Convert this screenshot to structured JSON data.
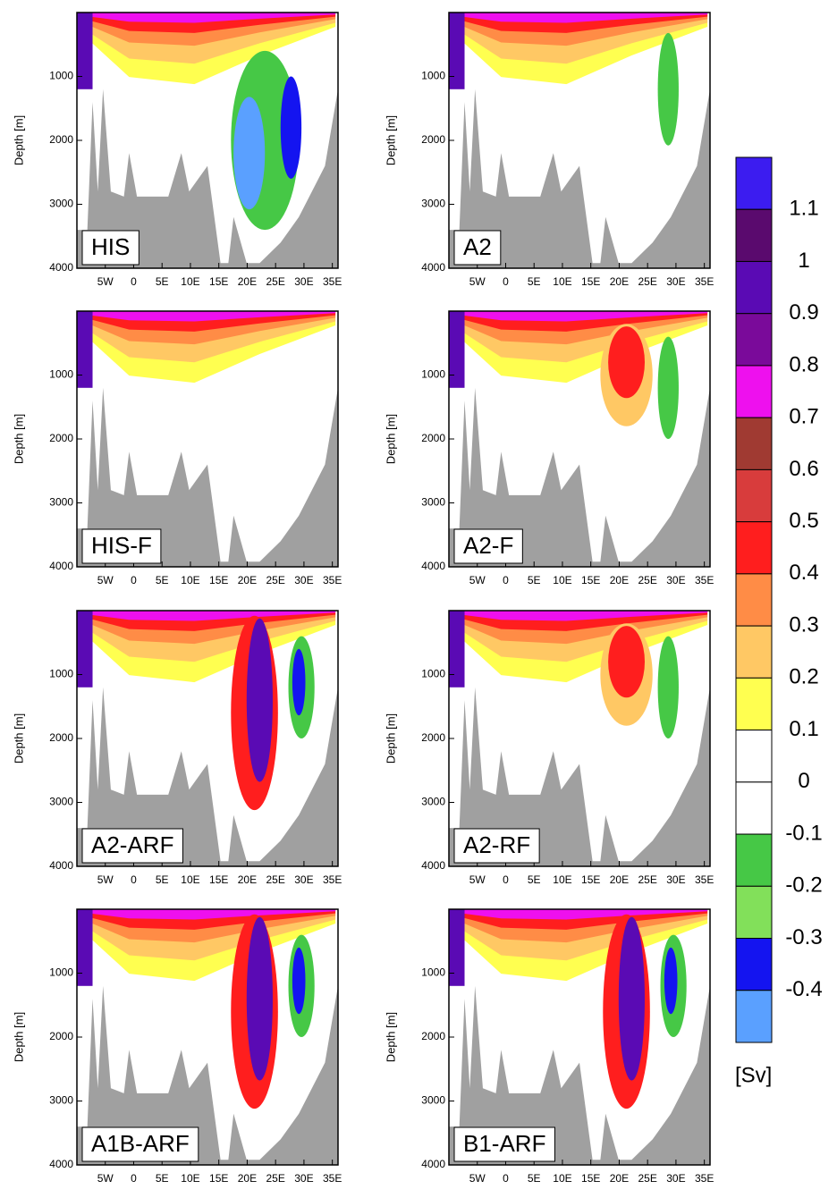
{
  "chart_data": [
    {
      "type": "contour",
      "label": "HIS",
      "ylabel": "Depth [m]",
      "xlim": [
        -10,
        36
      ],
      "ylim": [
        0,
        4000
      ],
      "xticks": [
        {
          "value": -5,
          "label": "5W"
        },
        0,
        {
          "value": 5,
          "label": "5E"
        },
        {
          "value": 10,
          "label": "10E"
        },
        {
          "value": 15,
          "label": "15E"
        },
        {
          "value": 20,
          "label": "20E"
        },
        {
          "value": 25,
          "label": "25E"
        },
        {
          "value": 30,
          "label": "30E"
        },
        {
          "value": 35,
          "label": "35E"
        }
      ],
      "yticks": [
        1000,
        2000,
        3000,
        4000
      ]
    },
    {
      "type": "contour",
      "label": "A2",
      "ylabel": "Depth [m]",
      "xlim": [
        -10,
        36
      ],
      "ylim": [
        0,
        4000
      ],
      "xticks": [
        {
          "value": -5,
          "label": "5W"
        },
        0,
        {
          "value": 5,
          "label": "5E"
        },
        {
          "value": 10,
          "label": "10E"
        },
        {
          "value": 15,
          "label": "15E"
        },
        {
          "value": 20,
          "label": "20E"
        },
        {
          "value": 25,
          "label": "25E"
        },
        {
          "value": 30,
          "label": "30E"
        },
        {
          "value": 35,
          "label": "35E"
        }
      ],
      "yticks": [
        1000,
        2000,
        3000,
        4000
      ]
    },
    {
      "type": "contour",
      "label": "HIS-F",
      "ylabel": "Depth [m]",
      "xlim": [
        -10,
        36
      ],
      "ylim": [
        0,
        4000
      ],
      "xticks": [
        {
          "value": -5,
          "label": "5W"
        },
        0,
        {
          "value": 5,
          "label": "5E"
        },
        {
          "value": 10,
          "label": "10E"
        },
        {
          "value": 15,
          "label": "15E"
        },
        {
          "value": 20,
          "label": "20E"
        },
        {
          "value": 25,
          "label": "25E"
        },
        {
          "value": 30,
          "label": "30E"
        },
        {
          "value": 35,
          "label": "35E"
        }
      ],
      "yticks": [
        1000,
        2000,
        3000,
        4000
      ]
    },
    {
      "type": "contour",
      "label": "A2-F",
      "ylabel": "Depth [m]",
      "xlim": [
        -10,
        36
      ],
      "ylim": [
        0,
        4000
      ],
      "xticks": [
        {
          "value": -5,
          "label": "5W"
        },
        0,
        {
          "value": 5,
          "label": "5E"
        },
        {
          "value": 10,
          "label": "10E"
        },
        {
          "value": 15,
          "label": "15E"
        },
        {
          "value": 20,
          "label": "20E"
        },
        {
          "value": 25,
          "label": "25E"
        },
        {
          "value": 30,
          "label": "30E"
        },
        {
          "value": 35,
          "label": "35E"
        }
      ],
      "yticks": [
        1000,
        2000,
        3000,
        4000
      ]
    },
    {
      "type": "contour",
      "label": "A2-ARF",
      "ylabel": "Depth [m]",
      "xlim": [
        -10,
        36
      ],
      "ylim": [
        0,
        4000
      ],
      "xticks": [
        {
          "value": -5,
          "label": "5W"
        },
        0,
        {
          "value": 5,
          "label": "5E"
        },
        {
          "value": 10,
          "label": "10E"
        },
        {
          "value": 15,
          "label": "15E"
        },
        {
          "value": 20,
          "label": "20E"
        },
        {
          "value": 25,
          "label": "25E"
        },
        {
          "value": 30,
          "label": "30E"
        },
        {
          "value": 35,
          "label": "35E"
        }
      ],
      "yticks": [
        1000,
        2000,
        3000,
        4000
      ]
    },
    {
      "type": "contour",
      "label": "A2-RF",
      "ylabel": "Depth [m]",
      "xlim": [
        -10,
        36
      ],
      "ylim": [
        0,
        4000
      ],
      "xticks": [
        {
          "value": -5,
          "label": "5W"
        },
        0,
        {
          "value": 5,
          "label": "5E"
        },
        {
          "value": 10,
          "label": "10E"
        },
        {
          "value": 15,
          "label": "15E"
        },
        {
          "value": 20,
          "label": "20E"
        },
        {
          "value": 25,
          "label": "25E"
        },
        {
          "value": 30,
          "label": "30E"
        },
        {
          "value": 35,
          "label": "35E"
        }
      ],
      "yticks": [
        1000,
        2000,
        3000,
        4000
      ]
    },
    {
      "type": "contour",
      "label": "A1B-ARF",
      "ylabel": "Depth [m]",
      "xlim": [
        -10,
        36
      ],
      "ylim": [
        0,
        4000
      ],
      "xticks": [
        {
          "value": -5,
          "label": "5W"
        },
        0,
        {
          "value": 5,
          "label": "5E"
        },
        {
          "value": 10,
          "label": "10E"
        },
        {
          "value": 15,
          "label": "15E"
        },
        {
          "value": 20,
          "label": "20E"
        },
        {
          "value": 25,
          "label": "25E"
        },
        {
          "value": 30,
          "label": "30E"
        },
        {
          "value": 35,
          "label": "35E"
        }
      ],
      "yticks": [
        1000,
        2000,
        3000,
        4000
      ]
    },
    {
      "type": "contour",
      "label": "B1-ARF",
      "ylabel": "Depth [m]",
      "xlim": [
        -10,
        36
      ],
      "ylim": [
        0,
        4000
      ],
      "xticks": [
        {
          "value": -5,
          "label": "5W"
        },
        0,
        {
          "value": 5,
          "label": "5E"
        },
        {
          "value": 10,
          "label": "10E"
        },
        {
          "value": 15,
          "label": "15E"
        },
        {
          "value": 20,
          "label": "20E"
        },
        {
          "value": 25,
          "label": "25E"
        },
        {
          "value": 30,
          "label": "30E"
        },
        {
          "value": 35,
          "label": "35E"
        }
      ],
      "yticks": [
        1000,
        2000,
        3000,
        4000
      ]
    }
  ],
  "colorbar": {
    "levels": [
      1.1,
      1,
      0.9,
      0.8,
      0.7,
      0.6,
      0.5,
      0.4,
      0.3,
      0.2,
      0.1,
      0,
      -0.1,
      -0.2,
      -0.3,
      -0.4
    ],
    "colors": [
      "#3c1cf0",
      "#5a0a6e",
      "#5a0ab4",
      "#7a0a9a",
      "#ee10ee",
      "#a03a32",
      "#d83c3c",
      "#ff1e1e",
      "#ff8c46",
      "#ffc864",
      "#ffff50",
      "#ffffff",
      "#ffffff",
      "#46c846",
      "#82e05a",
      "#1414f0",
      "#5aa0ff"
    ],
    "unit": "[Sv]"
  }
}
